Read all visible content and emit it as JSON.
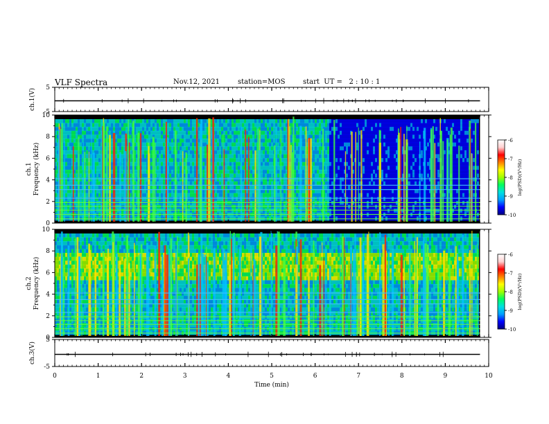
{
  "header": {
    "title": "VLF Spectra",
    "date": "Nov.12, 2021",
    "station": "station=MOS",
    "start": "start  UT =   2 : 10 : 1"
  },
  "chart_data": {
    "type": "heatmap",
    "title": "VLF Spectra",
    "xlabel": "Time (min)",
    "xlim": [
      0,
      10
    ],
    "x_ticks": [
      "0",
      "1",
      "2",
      "3",
      "4",
      "5",
      "6",
      "7",
      "8",
      "9",
      "10"
    ],
    "data_end_min": 9.8,
    "panels": [
      {
        "id": "ch1-waveform",
        "kind": "line",
        "ylabel": "ch.1(V)",
        "ylim": [
          -5,
          5
        ],
        "y_ticks": [
          "5",
          "-5"
        ]
      },
      {
        "id": "ch1-spectrogram",
        "kind": "heatmap",
        "ylabel": "ch.1 Frequency (kHz)",
        "ylim": [
          0,
          10
        ],
        "y_ticks": [
          "0",
          "2",
          "4",
          "6",
          "8",
          "10"
        ],
        "colorbar": {
          "label": "log(PSD)(V²/Hz)",
          "range": [
            -10,
            -6
          ],
          "ticks": [
            "-6",
            "-7",
            "-8",
            "-9",
            "-10"
          ],
          "colormap": [
            "#000080",
            "#0000ff",
            "#00a0ff",
            "#00e0e0",
            "#00ff60",
            "#a0ff00",
            "#ffff00",
            "#ff8000",
            "#ff0000",
            "#ffd0d0",
            "#ffffff"
          ]
        }
      },
      {
        "id": "ch2-spectrogram",
        "kind": "heatmap",
        "ylabel": "ch.2 Frequency (kHz)",
        "ylim": [
          0,
          10
        ],
        "y_ticks": [
          "0",
          "2",
          "4",
          "6",
          "8",
          "10"
        ],
        "colorbar": {
          "label": "log(PSD)(V²/Hz)",
          "range": [
            -10,
            -6
          ],
          "ticks": [
            "-6",
            "-7",
            "-8",
            "-9",
            "-10"
          ],
          "colormap": [
            "#000080",
            "#0000ff",
            "#00a0ff",
            "#00e0e0",
            "#00ff60",
            "#a0ff00",
            "#ffff00",
            "#ff8000",
            "#ff0000",
            "#ffd0d0",
            "#ffffff"
          ]
        }
      },
      {
        "id": "ch3-waveform",
        "kind": "line",
        "ylabel": "ch.3(V)",
        "ylim": [
          -5,
          5
        ],
        "y_ticks": [
          "5",
          "-5"
        ]
      }
    ]
  }
}
